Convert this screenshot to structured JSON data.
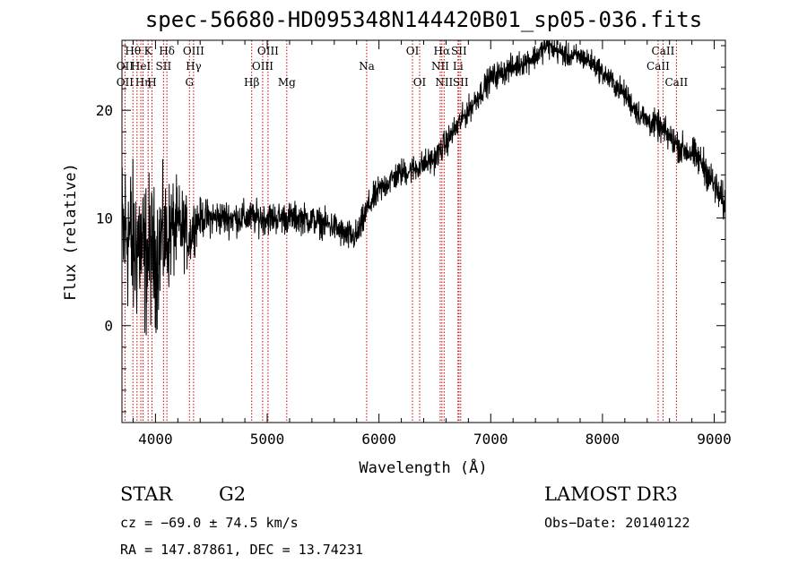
{
  "chart_data": {
    "type": "line",
    "title": "spec-56680-HD095348N144420B01_sp05-036.fits",
    "xlabel": "Wavelength (Å)",
    "ylabel": "Flux (relative)",
    "xlim": [
      3700,
      9100
    ],
    "ylim": [
      -9,
      26.5
    ],
    "xticks": [
      4000,
      5000,
      6000,
      7000,
      8000,
      9000
    ],
    "yticks": [
      0,
      10,
      20
    ],
    "x_tick_labels": [
      "4000",
      "5000",
      "6000",
      "7000",
      "8000",
      "9000"
    ],
    "y_tick_labels": [
      "0",
      "10",
      "20"
    ],
    "grid": false,
    "line_color": "#000000",
    "marker_color": "#cc0000",
    "spectrum_anchors": [
      [
        3700,
        8
      ],
      [
        3750,
        9
      ],
      [
        3800,
        7
      ],
      [
        3850,
        8
      ],
      [
        3900,
        6
      ],
      [
        3950,
        7
      ],
      [
        4000,
        6
      ],
      [
        4050,
        8
      ],
      [
        4100,
        8
      ],
      [
        4150,
        9
      ],
      [
        4200,
        9
      ],
      [
        4250,
        9
      ],
      [
        4300,
        8
      ],
      [
        4350,
        9.5
      ],
      [
        4400,
        10
      ],
      [
        4500,
        10
      ],
      [
        4600,
        10
      ],
      [
        4700,
        10
      ],
      [
        4800,
        10
      ],
      [
        4900,
        10
      ],
      [
        5000,
        10
      ],
      [
        5100,
        10
      ],
      [
        5200,
        10
      ],
      [
        5300,
        10
      ],
      [
        5400,
        9.8
      ],
      [
        5500,
        9.5
      ],
      [
        5600,
        9.2
      ],
      [
        5700,
        8.3
      ],
      [
        5800,
        8.3
      ],
      [
        5850,
        9.5
      ],
      [
        5900,
        11
      ],
      [
        6000,
        12.5
      ],
      [
        6100,
        13.5
      ],
      [
        6200,
        14.2
      ],
      [
        6300,
        14.5
      ],
      [
        6400,
        15
      ],
      [
        6500,
        15.5
      ],
      [
        6600,
        17
      ],
      [
        6700,
        18.5
      ],
      [
        6800,
        20
      ],
      [
        6900,
        21.5
      ],
      [
        7000,
        23
      ],
      [
        7100,
        23.5
      ],
      [
        7200,
        24
      ],
      [
        7300,
        24.5
      ],
      [
        7400,
        25
      ],
      [
        7500,
        26
      ],
      [
        7600,
        25.5
      ],
      [
        7700,
        25
      ],
      [
        7800,
        25
      ],
      [
        7900,
        24.5
      ],
      [
        8000,
        23.5
      ],
      [
        8100,
        22.5
      ],
      [
        8200,
        21.5
      ],
      [
        8300,
        20
      ],
      [
        8400,
        19
      ],
      [
        8500,
        18.5
      ],
      [
        8600,
        17.5
      ],
      [
        8700,
        16.5
      ],
      [
        8800,
        16
      ],
      [
        8900,
        15
      ],
      [
        9000,
        13
      ],
      [
        9100,
        11
      ]
    ],
    "noise_level": [
      [
        3700,
        6
      ],
      [
        3900,
        5.5
      ],
      [
        4100,
        4
      ],
      [
        4300,
        2.2
      ],
      [
        4400,
        1.3
      ],
      [
        5500,
        1.0
      ],
      [
        5800,
        1.1
      ],
      [
        6000,
        1.0
      ],
      [
        7000,
        0.9
      ],
      [
        8000,
        0.8
      ],
      [
        8500,
        1.0
      ],
      [
        9100,
        1.3
      ]
    ],
    "line_markers": [
      {
        "wavelength": 3798,
        "label": "Hθ",
        "row": 0
      },
      {
        "wavelength": 3835,
        "label": "",
        "row": 0
      },
      {
        "wavelength": 3889,
        "label": "",
        "row": 0
      },
      {
        "wavelength": 3934,
        "label": "K",
        "row": 0
      },
      {
        "wavelength": 3969,
        "label": "",
        "row": 0
      },
      {
        "wavelength": 4102,
        "label": "Hδ",
        "row": 0
      },
      {
        "wavelength": 4341,
        "label": "OIII",
        "row": 0
      },
      {
        "wavelength": 5007,
        "label": "OIII",
        "row": 0
      },
      {
        "wavelength": 6300,
        "label": "OI",
        "row": 0
      },
      {
        "wavelength": 6563,
        "label": "Hα",
        "row": 0
      },
      {
        "wavelength": 6716,
        "label": "SII",
        "row": 0
      },
      {
        "wavelength": 8542,
        "label": "CaII",
        "row": 0
      },
      {
        "wavelength": 3727,
        "label": "OII",
        "row": 1
      },
      {
        "wavelength": 3869,
        "label": "HeI",
        "row": 1
      },
      {
        "wavelength": 4072,
        "label": "SII",
        "row": 1
      },
      {
        "wavelength": 4341,
        "label": "Hγ",
        "row": 1
      },
      {
        "wavelength": 4959,
        "label": "OIII",
        "row": 1
      },
      {
        "wavelength": 5890,
        "label": "Na",
        "row": 1
      },
      {
        "wavelength": 6548,
        "label": "NII",
        "row": 1
      },
      {
        "wavelength": 6707,
        "label": "Li",
        "row": 1
      },
      {
        "wavelength": 8498,
        "label": "CaII",
        "row": 1
      },
      {
        "wavelength": 3727,
        "label": "OII",
        "row": 2
      },
      {
        "wavelength": 3889,
        "label": "Hη",
        "row": 2
      },
      {
        "wavelength": 3969,
        "label": "H",
        "row": 2
      },
      {
        "wavelength": 4304,
        "label": "G",
        "row": 2
      },
      {
        "wavelength": 4861,
        "label": "Hβ",
        "row": 2
      },
      {
        "wavelength": 5175,
        "label": "Mg",
        "row": 2
      },
      {
        "wavelength": 6364,
        "label": "OI",
        "row": 2
      },
      {
        "wavelength": 6583,
        "label": "NII",
        "row": 2
      },
      {
        "wavelength": 6731,
        "label": "SII",
        "row": 2
      },
      {
        "wavelength": 8662,
        "label": "CaII",
        "row": 2
      }
    ]
  },
  "info": {
    "class": "STAR",
    "subclass": "G2",
    "survey": "LAMOST DR3",
    "cz": "cz = −69.0 ± 74.5 km/s",
    "obs_date": "Obs−Date: 20140122",
    "radec": "RA = 147.87861, DEC =  13.74231"
  }
}
